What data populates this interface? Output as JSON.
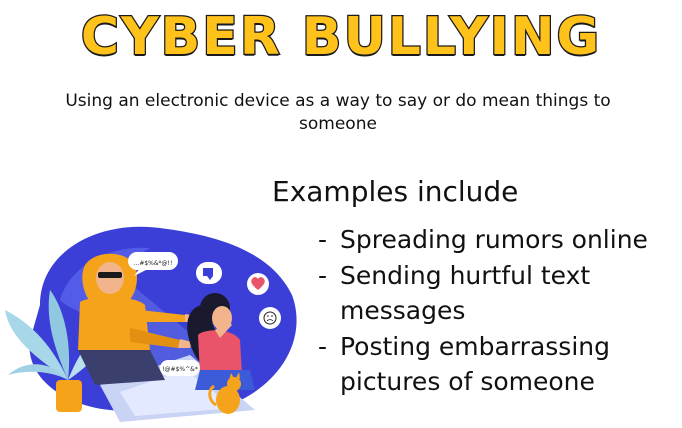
{
  "slide": {
    "title": "CYBER BULLYING",
    "definition": "Using an electronic device as a way to say or do mean things to someone",
    "examples_heading": "Examples include",
    "examples": [
      "Spreading rumors online",
      "Sending hurtful text messages",
      "Posting embarrassing pictures of someone"
    ],
    "bullet": "-"
  },
  "illustration": {
    "bubble_text_1": "...#$%&*@!!",
    "bubble_text_2": "!@#$%^&*"
  },
  "colors": {
    "title_fill": "#ffc21a",
    "title_outline": "#1a1a1a",
    "blob_blue": "#3b3fd8",
    "hoodie_orange": "#f4a31b",
    "victim_shirt": "#e9546b"
  },
  "icons": [
    "thumbs-down-icon",
    "broken-heart-icon",
    "sad-face-icon",
    "cat-icon",
    "plant-icon",
    "laptop-icon"
  ]
}
